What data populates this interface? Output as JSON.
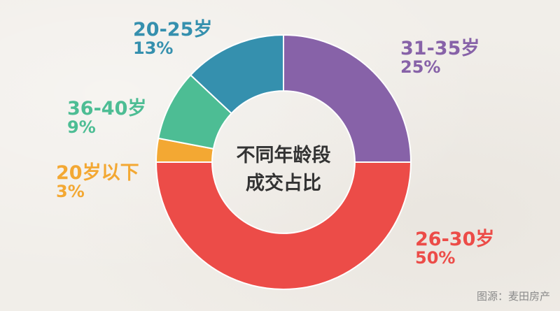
{
  "chart_data": {
    "type": "pie",
    "title_line1": "不同年龄段",
    "title_line2": "成交占比",
    "categories": [
      "31-35岁",
      "26-30岁",
      "20岁以下",
      "36-40岁",
      "20-25岁"
    ],
    "values": [
      25,
      50,
      3,
      9,
      13
    ],
    "labels": [
      "25%",
      "50%",
      "3%",
      "9%",
      "13%"
    ],
    "colors": [
      "#8762a8",
      "#ec4c48",
      "#f3a833",
      "#4dbd94",
      "#3590ae"
    ],
    "inner_radius_ratio": 0.56
  },
  "source": "图源：麦田房产"
}
